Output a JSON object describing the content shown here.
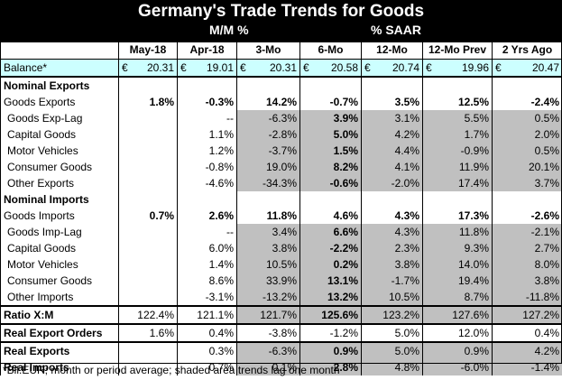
{
  "title": "Germany's Trade Trends for Goods",
  "subtitle_left": "M/M %",
  "subtitle_right": "% SAAR",
  "columns": [
    "May-18",
    "Apr-18",
    "3-Mo",
    "6-Mo",
    "12-Mo",
    "12-Mo Prev",
    "2 Yrs Ago"
  ],
  "balance": {
    "label": "Balance*",
    "currency": "€",
    "values": [
      "20.31",
      "19.01",
      "20.31",
      "20.58",
      "20.74",
      "19.96",
      "20.47"
    ]
  },
  "sections": {
    "exports": "Nominal Exports",
    "imports": "Nominal Imports"
  },
  "rows": {
    "goods_exports": {
      "label": "Goods Exports",
      "values": [
        "1.8%",
        "-0.3%",
        "14.2%",
        "-0.7%",
        "3.5%",
        "12.5%",
        "-2.4%"
      ]
    },
    "goods_exp_lag": {
      "label": "Goods Exp-Lag",
      "values": [
        "",
        "--",
        "-6.3%",
        "3.9%",
        "3.1%",
        "5.5%",
        "0.5%"
      ]
    },
    "exp_capital": {
      "label": "Capital Goods",
      "values": [
        "",
        "1.1%",
        "-2.8%",
        "5.0%",
        "4.2%",
        "1.7%",
        "2.0%"
      ]
    },
    "exp_motor": {
      "label": "Motor Vehicles",
      "values": [
        "",
        "1.2%",
        "-3.7%",
        "1.5%",
        "4.4%",
        "-0.9%",
        "0.5%"
      ]
    },
    "exp_consumer": {
      "label": "Consumer Goods",
      "values": [
        "",
        "-0.8%",
        "19.0%",
        "8.2%",
        "4.1%",
        "11.9%",
        "20.1%"
      ]
    },
    "exp_other": {
      "label": "Other Exports",
      "values": [
        "",
        "-4.6%",
        "-34.3%",
        "-0.6%",
        "-2.0%",
        "17.4%",
        "3.7%"
      ]
    },
    "goods_imports": {
      "label": "Goods Imports",
      "values": [
        "0.7%",
        "2.6%",
        "11.8%",
        "4.6%",
        "4.3%",
        "17.3%",
        "-2.6%"
      ]
    },
    "goods_imp_lag": {
      "label": "Goods Imp-Lag",
      "values": [
        "",
        "--",
        "3.4%",
        "6.6%",
        "4.3%",
        "11.8%",
        "-2.1%"
      ]
    },
    "imp_capital": {
      "label": "Capital Goods",
      "values": [
        "",
        "6.0%",
        "3.8%",
        "-2.2%",
        "2.3%",
        "9.3%",
        "2.7%"
      ]
    },
    "imp_motor": {
      "label": "Motor Vehicles",
      "values": [
        "",
        "1.4%",
        "10.5%",
        "0.2%",
        "3.8%",
        "14.0%",
        "8.0%"
      ]
    },
    "imp_consumer": {
      "label": "Consumer Goods",
      "values": [
        "",
        "8.6%",
        "33.9%",
        "13.1%",
        "-1.7%",
        "19.4%",
        "3.8%"
      ]
    },
    "imp_other": {
      "label": "Other Imports",
      "values": [
        "",
        "-3.1%",
        "-13.2%",
        "13.2%",
        "10.5%",
        "8.7%",
        "-11.8%"
      ]
    },
    "ratio": {
      "label": "Ratio X:M",
      "values": [
        "122.4%",
        "121.1%",
        "121.7%",
        "125.6%",
        "123.2%",
        "127.6%",
        "127.2%"
      ]
    },
    "real_export_orders": {
      "label": "Real Export Orders",
      "values": [
        "1.6%",
        "0.4%",
        "-3.8%",
        "-1.2%",
        "5.0%",
        "12.0%",
        "0.4%"
      ]
    },
    "real_exports": {
      "label": "Real Exports",
      "values": [
        "",
        "0.3%",
        "-6.3%",
        "0.9%",
        "5.0%",
        "0.9%",
        "4.2%"
      ]
    },
    "real_imports": {
      "label": "Real Imports",
      "values": [
        "",
        "0.7%",
        "0.1%",
        "2.8%",
        "4.8%",
        "-6.0%",
        "-1.4%"
      ]
    }
  },
  "footnote": "*Bil.EUR; month or period average; shaded area trends lag one month",
  "colors": {
    "header_bg": "#000000",
    "header_text": "#ffffff",
    "balance_bg": "#ccffff",
    "shade": "#c0c0c0"
  }
}
